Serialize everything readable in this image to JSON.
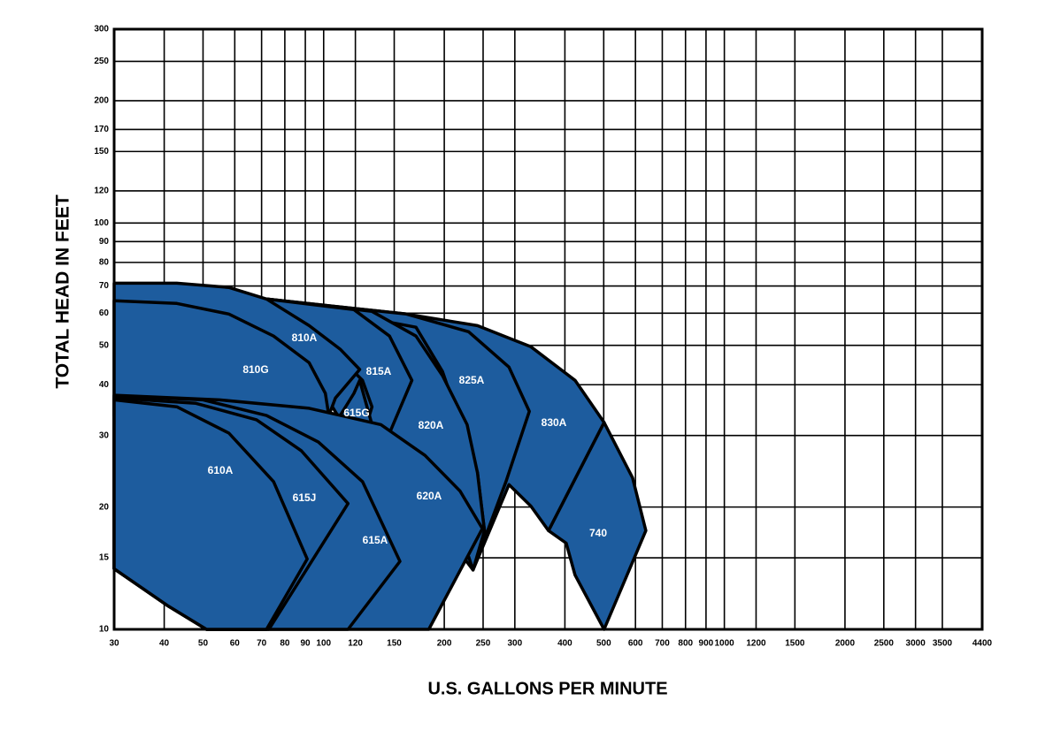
{
  "chart_data": {
    "type": "region",
    "xlabel": "U.S. GALLONS PER MINUTE",
    "ylabel": "TOTAL HEAD IN FEET",
    "xscale": "log",
    "yscale": "log",
    "grid": true,
    "color": "#1d5c9e",
    "xlim": [
      30,
      4400
    ],
    "ylim": [
      10,
      300
    ],
    "xticks": [
      30,
      40,
      50,
      60,
      70,
      80,
      90,
      100,
      120,
      150,
      200,
      250,
      300,
      400,
      500,
      600,
      700,
      800,
      900,
      1000,
      1200,
      1500,
      2000,
      2500,
      3000,
      3500,
      4400
    ],
    "yticks": [
      10,
      15,
      20,
      30,
      40,
      50,
      60,
      70,
      80,
      90,
      100,
      120,
      150,
      170,
      200,
      250,
      300
    ],
    "regions": [
      {
        "name": "740",
        "x": [
          364,
          501,
          590,
          637,
          501,
          424,
          403
        ],
        "y": [
          17.5,
          32.3,
          23.6,
          17.5,
          10,
          13.6,
          16.3
        ]
      },
      {
        "name": "830A",
        "x": [
          72,
          161,
          242,
          329,
          424,
          501,
          364,
          329,
          290,
          236
        ],
        "y": [
          65.0,
          59.7,
          55.9,
          49.6,
          41.0,
          32.3,
          17.5,
          20.1,
          22.7,
          14.0
        ]
      },
      {
        "name": "825A",
        "x": [
          72,
          161,
          230,
          290,
          326,
          285,
          236,
          252,
          242,
          198,
          170
        ],
        "y": [
          65.0,
          59.7,
          54.0,
          44.2,
          34.4,
          23.1,
          14.0,
          17.5,
          24.3,
          43.1,
          55.4
        ]
      },
      {
        "name": "820A",
        "x": [
          72,
          132,
          170,
          198,
          228,
          242,
          252,
          236,
          230,
          119
        ],
        "y": [
          65.0,
          60.6,
          52.7,
          42.1,
          31.9,
          24.3,
          17.5,
          14.0,
          15.1,
          28.9
        ]
      },
      {
        "name": "815A",
        "x": [
          72,
          119,
          146,
          166,
          146,
          128,
          132,
          125,
          107
        ],
        "y": [
          65.0,
          61.2,
          52.7,
          41.0,
          30.4,
          31.9,
          35.3,
          41.0,
          47.7
        ]
      },
      {
        "name": "810A",
        "x": [
          30,
          43,
          58,
          72,
          92,
          110,
          123,
          107,
          103,
          30
        ],
        "y": [
          71.1,
          71.1,
          69.4,
          65.0,
          55.9,
          48.9,
          43.6,
          37.1,
          33.6,
          33.6
        ]
      },
      {
        "name": "810G",
        "x": [
          30,
          43,
          58,
          75,
          92,
          101,
          103,
          30
        ],
        "y": [
          64.4,
          63.4,
          59.7,
          52.7,
          45.3,
          38.1,
          33.6,
          33.6
        ]
      },
      {
        "name": "615G",
        "x": [
          110,
          119,
          123,
          132,
          119
        ],
        "y": [
          33.6,
          38.1,
          41.0,
          31.9,
          32.3
        ]
      },
      {
        "name": "620A",
        "x": [
          30,
          55,
          92,
          139,
          179,
          219,
          249,
          183,
          51,
          41,
          30
        ],
        "y": [
          37.7,
          36.7,
          35.0,
          31.9,
          26.8,
          21.9,
          17.7,
          10,
          10,
          11.4,
          14.1
        ]
      },
      {
        "name": "615A",
        "x": [
          30,
          50,
          72,
          97,
          125,
          155,
          115,
          51,
          41,
          30
        ],
        "y": [
          37.5,
          36.7,
          33.6,
          28.9,
          23.1,
          14.7,
          10,
          10,
          11.4,
          14.1
        ]
      },
      {
        "name": "615J",
        "x": [
          30,
          48,
          68,
          88,
          115,
          73,
          51,
          41,
          30
        ],
        "y": [
          37.1,
          36.0,
          32.8,
          27.5,
          20.4,
          10,
          10,
          11.4,
          14.1
        ]
      },
      {
        "name": "610A",
        "x": [
          30,
          43,
          58,
          75,
          91,
          72,
          51,
          41,
          30
        ],
        "y": [
          36.7,
          35.3,
          30.4,
          23.1,
          14.9,
          10,
          10,
          11.4,
          14.1
        ]
      }
    ]
  }
}
